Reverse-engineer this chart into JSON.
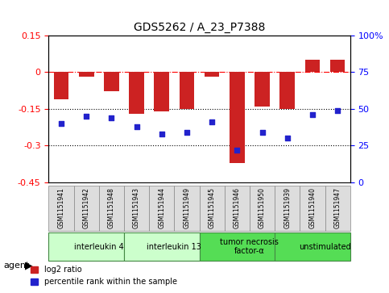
{
  "title": "GDS5262 / A_23_P7388",
  "samples": [
    "GSM1151941",
    "GSM1151942",
    "GSM1151948",
    "GSM1151943",
    "GSM1151944",
    "GSM1151949",
    "GSM1151945",
    "GSM1151946",
    "GSM1151950",
    "GSM1151939",
    "GSM1151940",
    "GSM1151947"
  ],
  "log2_ratio": [
    -0.11,
    -0.02,
    -0.08,
    -0.17,
    -0.16,
    -0.15,
    -0.02,
    -0.37,
    -0.14,
    -0.15,
    0.05,
    0.05
  ],
  "percentile": [
    40,
    45,
    44,
    38,
    33,
    34,
    41,
    22,
    34,
    30,
    46,
    49
  ],
  "ylim_left": [
    -0.45,
    0.15
  ],
  "ylim_right": [
    0,
    100
  ],
  "hlines": [
    0.0,
    -0.15,
    -0.3
  ],
  "bar_color": "#cc2222",
  "dot_color": "#2222cc",
  "bg_color": "#ffffff",
  "agent_groups": [
    {
      "label": "interleukin 4",
      "start": 0,
      "end": 3,
      "color": "#ccffcc"
    },
    {
      "label": "interleukin 13",
      "start": 3,
      "end": 6,
      "color": "#ccffcc"
    },
    {
      "label": "tumor necrosis\nfactor-α",
      "start": 6,
      "end": 9,
      "color": "#55dd55"
    },
    {
      "label": "unstimulated",
      "start": 9,
      "end": 12,
      "color": "#55dd55"
    }
  ],
  "right_yticks": [
    0,
    25,
    50,
    75,
    100
  ],
  "right_ytick_labels": [
    "0",
    "25",
    "50",
    "75",
    "100%"
  ]
}
